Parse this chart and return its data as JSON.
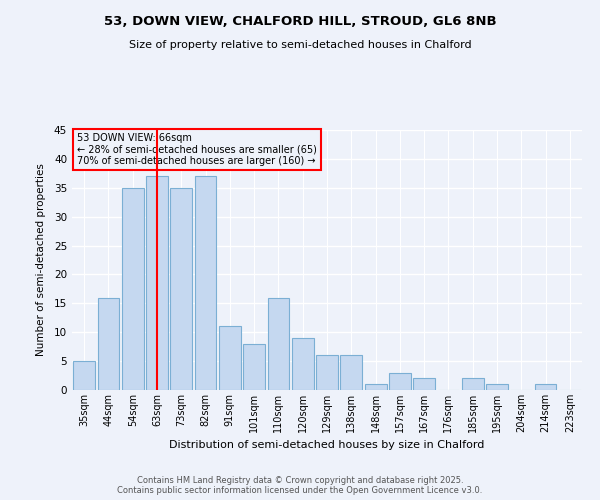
{
  "title_line1": "53, DOWN VIEW, CHALFORD HILL, STROUD, GL6 8NB",
  "title_line2": "Size of property relative to semi-detached houses in Chalford",
  "xlabel": "Distribution of semi-detached houses by size in Chalford",
  "ylabel": "Number of semi-detached properties",
  "categories": [
    "35sqm",
    "44sqm",
    "54sqm",
    "63sqm",
    "73sqm",
    "82sqm",
    "91sqm",
    "101sqm",
    "110sqm",
    "120sqm",
    "129sqm",
    "138sqm",
    "148sqm",
    "157sqm",
    "167sqm",
    "176sqm",
    "185sqm",
    "195sqm",
    "204sqm",
    "214sqm",
    "223sqm"
  ],
  "values": [
    5,
    16,
    35,
    37,
    35,
    37,
    11,
    8,
    16,
    9,
    6,
    6,
    1,
    3,
    2,
    0,
    2,
    1,
    0,
    1,
    0
  ],
  "bar_color": "#c5d8f0",
  "bar_edge_color": "#7bafd4",
  "red_line_x": 3,
  "annotation_title": "53 DOWN VIEW: 66sqm",
  "annotation_line1": "← 28% of semi-detached houses are smaller (65)",
  "annotation_line2": "70% of semi-detached houses are larger (160) →",
  "ylim": [
    0,
    45
  ],
  "yticks": [
    0,
    5,
    10,
    15,
    20,
    25,
    30,
    35,
    40,
    45
  ],
  "footer_line1": "Contains HM Land Registry data © Crown copyright and database right 2025.",
  "footer_line2": "Contains public sector information licensed under the Open Government Licence v3.0.",
  "background_color": "#eef2fa"
}
